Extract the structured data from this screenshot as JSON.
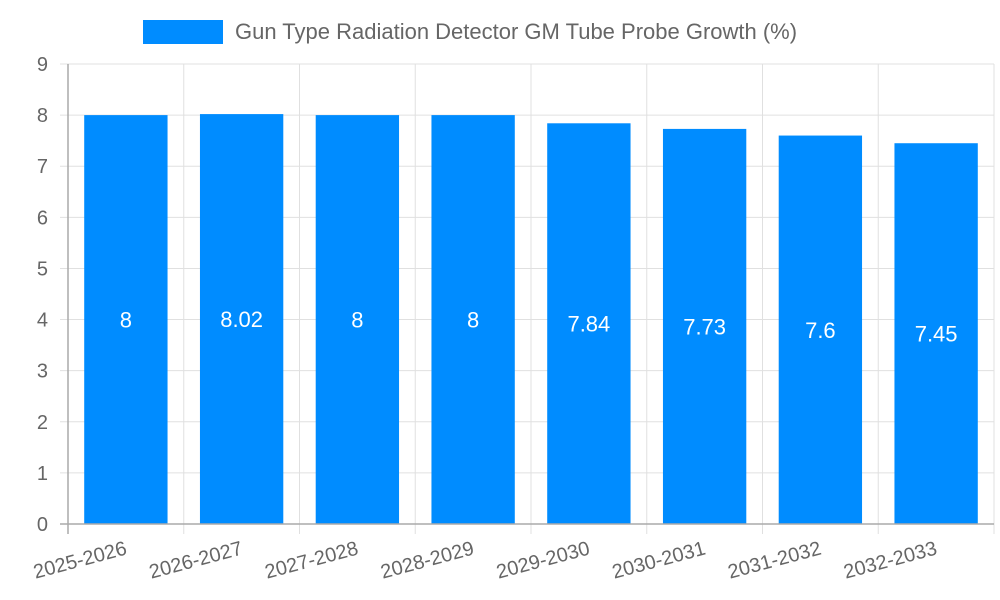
{
  "chart_data": {
    "type": "bar",
    "title": "",
    "legend": [
      {
        "label": "Gun Type Radiation Detector GM Tube Probe Growth (%)",
        "color": "#008cff"
      }
    ],
    "legend_position": "top",
    "categories": [
      "2025-2026",
      "2026-2027",
      "2027-2028",
      "2028-2029",
      "2029-2030",
      "2030-2031",
      "2031-2032",
      "2032-2033"
    ],
    "series": [
      {
        "name": "Gun Type Radiation Detector GM Tube Probe Growth (%)",
        "values": [
          8,
          8.02,
          8,
          8,
          7.84,
          7.73,
          7.6,
          7.45
        ],
        "color": "#008cff"
      }
    ],
    "data_labels": [
      "8",
      "8.02",
      "8",
      "8",
      "7.84",
      "7.73",
      "7.6",
      "7.45"
    ],
    "xlabel": "",
    "ylabel": "",
    "ylim": [
      0,
      9
    ],
    "yticks": [
      0,
      1,
      2,
      3,
      4,
      5,
      6,
      7,
      8,
      9
    ],
    "grid": true
  },
  "legend": {
    "label": "Gun Type Radiation Detector GM Tube Probe Growth (%)"
  }
}
